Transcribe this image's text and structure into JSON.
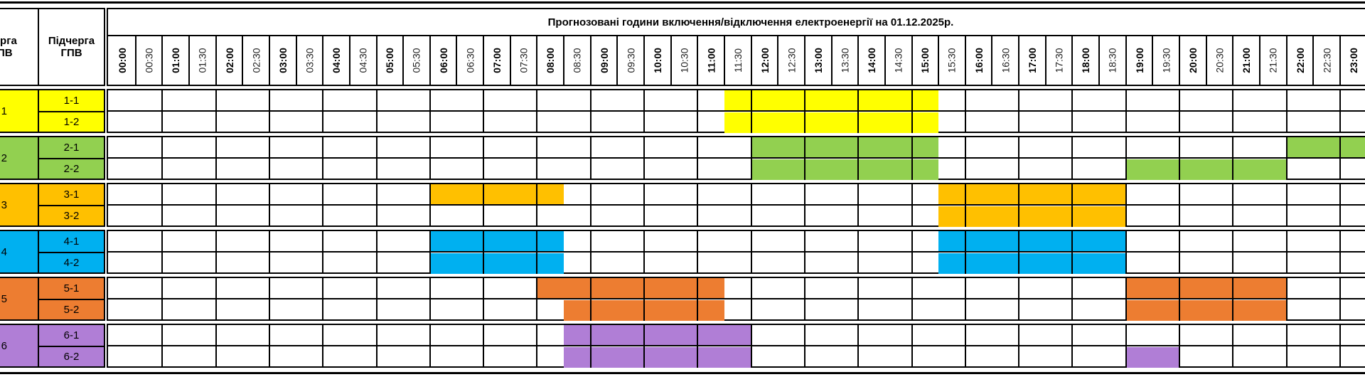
{
  "header": {
    "queue_label": "Черга ГПВ",
    "subqueue_label": "Підчерга ГПВ",
    "title": "Прогнозовані години включення/відключення електроенергії на 01.12.2025р."
  },
  "time_slots": [
    "00:00",
    "00:30",
    "01:00",
    "01:30",
    "02:00",
    "02:30",
    "03:00",
    "03:30",
    "04:00",
    "04:30",
    "05:00",
    "05:30",
    "06:00",
    "06:30",
    "07:00",
    "07:30",
    "08:00",
    "08:30",
    "09:00",
    "09:30",
    "10:00",
    "10:30",
    "11:00",
    "11:30",
    "12:00",
    "12:30",
    "13:00",
    "13:30",
    "14:00",
    "14:30",
    "15:00",
    "15:30",
    "16:00",
    "16:30",
    "17:00",
    "17:30",
    "18:00",
    "18:30",
    "19:00",
    "19:30",
    "20:00",
    "20:30",
    "21:00",
    "21:30",
    "22:00",
    "22:30",
    "23:00"
  ],
  "groups": [
    {
      "id": "1",
      "color": "#FFFF00",
      "subgroups": [
        {
          "id": "1-1",
          "outages": [
            [
              "11:30",
              "15:30"
            ]
          ]
        },
        {
          "id": "1-2",
          "outages": [
            [
              "11:30",
              "15:30"
            ]
          ]
        }
      ]
    },
    {
      "id": "2",
      "color": "#92D050",
      "subgroups": [
        {
          "id": "2-1",
          "outages": [
            [
              "12:00",
              "15:30"
            ],
            [
              "22:00",
              "24:00"
            ]
          ]
        },
        {
          "id": "2-2",
          "outages": [
            [
              "12:00",
              "15:30"
            ],
            [
              "19:00",
              "22:00"
            ]
          ]
        }
      ]
    },
    {
      "id": "3",
      "color": "#FFC000",
      "subgroups": [
        {
          "id": "3-1",
          "outages": [
            [
              "06:00",
              "08:30"
            ],
            [
              "15:30",
              "19:00"
            ]
          ]
        },
        {
          "id": "3-2",
          "outages": [
            [
              "15:30",
              "19:00"
            ]
          ]
        }
      ]
    },
    {
      "id": "4",
      "color": "#00B0F0",
      "subgroups": [
        {
          "id": "4-1",
          "outages": [
            [
              "06:00",
              "08:30"
            ],
            [
              "15:30",
              "19:00"
            ]
          ]
        },
        {
          "id": "4-2",
          "outages": [
            [
              "06:00",
              "08:30"
            ],
            [
              "15:30",
              "19:00"
            ]
          ]
        }
      ]
    },
    {
      "id": "5",
      "color": "#ED7D31",
      "subgroups": [
        {
          "id": "5-1",
          "outages": [
            [
              "08:00",
              "11:30"
            ],
            [
              "19:00",
              "22:00"
            ]
          ]
        },
        {
          "id": "5-2",
          "outages": [
            [
              "08:30",
              "11:30"
            ],
            [
              "19:00",
              "22:00"
            ]
          ]
        }
      ]
    },
    {
      "id": "6",
      "color": "#B07ED6",
      "subgroups": [
        {
          "id": "6-1",
          "outages": [
            [
              "08:30",
              "12:00"
            ]
          ]
        },
        {
          "id": "6-2",
          "outages": [
            [
              "08:30",
              "12:00"
            ],
            [
              "19:00",
              "20:00"
            ]
          ]
        }
      ]
    }
  ]
}
